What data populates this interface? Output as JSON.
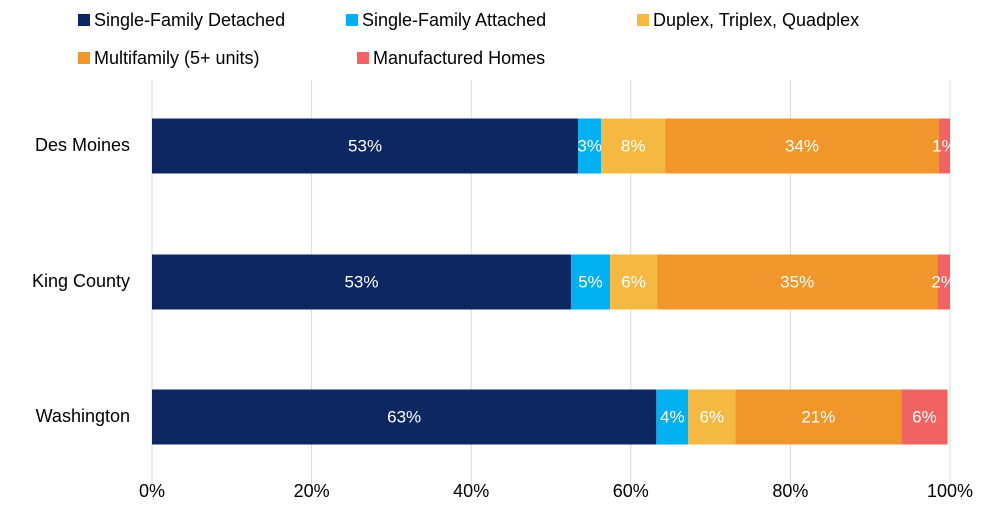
{
  "chart_data": {
    "type": "stacked_bar_horizontal",
    "categories": [
      "Des Moines",
      "King County",
      "Washington"
    ],
    "series": [
      {
        "name": "Single-Family Detached",
        "color": "#0d2763",
        "values": [
          53.4,
          52.5,
          63.2
        ],
        "value_labels": [
          "53%",
          "53%",
          "63%"
        ]
      },
      {
        "name": "Single-Family Attached",
        "color": "#00b0f0",
        "values": [
          2.9,
          4.9,
          4.0
        ],
        "value_labels": [
          "3%",
          "5%",
          "4%"
        ]
      },
      {
        "name": "Duplex, Triplex, Quadplex",
        "color": "#f4b942",
        "values": [
          8.0,
          5.9,
          5.9
        ],
        "value_labels": [
          "8%",
          "6%",
          "6%"
        ]
      },
      {
        "name": "Multifamily (5+ units)",
        "color": "#f0962a",
        "values": [
          34.3,
          35.1,
          20.8
        ],
        "value_labels": [
          "34%",
          "35%",
          "21%"
        ]
      },
      {
        "name": "Manufactured Homes",
        "color": "#f26363",
        "values": [
          1.4,
          1.6,
          5.8
        ],
        "value_labels": [
          "1%",
          "2%",
          "6%"
        ]
      }
    ],
    "xlim": [
      0,
      100
    ],
    "xticks": [
      {
        "value": 0,
        "label": "0%"
      },
      {
        "value": 20,
        "label": "20%"
      },
      {
        "value": 40,
        "label": "40%"
      },
      {
        "value": 60,
        "label": "60%"
      },
      {
        "value": 80,
        "label": "80%"
      },
      {
        "value": 100,
        "label": "100%"
      }
    ],
    "grid": true,
    "legend": "top"
  }
}
